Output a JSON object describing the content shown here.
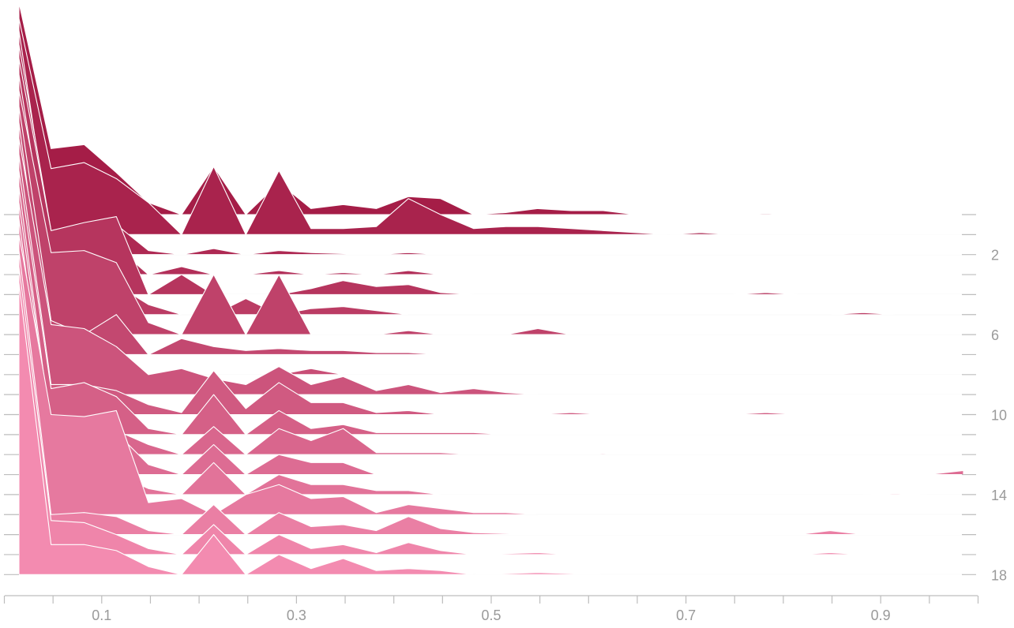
{
  "chart_data": {
    "type": "area",
    "subtype": "ridgeline",
    "title": "",
    "xlabel": "",
    "ylabel": "",
    "xlim": [
      0.015,
      0.985
    ],
    "ylim": [
      0,
      18.5
    ],
    "x": [
      0.015,
      0.048,
      0.082,
      0.115,
      0.148,
      0.182,
      0.215,
      0.248,
      0.282,
      0.315,
      0.348,
      0.382,
      0.415,
      0.448,
      0.482,
      0.515,
      0.548,
      0.582,
      0.615,
      0.648,
      0.682,
      0.715,
      0.748,
      0.782,
      0.815,
      0.848,
      0.882,
      0.915,
      0.948,
      0.985
    ],
    "x_ticks": [
      0.1,
      0.3,
      0.5,
      0.7,
      0.9
    ],
    "x_tick_labels": [
      "0.1",
      "0.3",
      "0.5",
      "0.7",
      "0.9"
    ],
    "y_ticks": [
      0,
      1,
      2,
      3,
      4,
      5,
      6,
      7,
      8,
      9,
      10,
      11,
      12,
      13,
      14,
      15,
      16,
      17,
      18
    ],
    "y_tick_labels": [
      "2",
      "6",
      "10",
      "14",
      "18"
    ],
    "y_tick_label_values": [
      2,
      6,
      10,
      14,
      18
    ],
    "y_axis_position": "right",
    "grid": false,
    "legend": "none",
    "color_start": "#a51d47",
    "color_end": "#f38bb0",
    "series": [
      {
        "baseline": 0,
        "values": [
          10.6,
          3.3,
          3.5,
          2.1,
          0.6,
          0.0,
          2.4,
          0.0,
          1.6,
          0.3,
          0.5,
          0.3,
          0.9,
          0.8,
          0.0,
          0.1,
          0.3,
          0.2,
          0.2,
          0.0,
          0.0,
          0.0,
          0.0,
          0.05,
          0.0,
          0.0,
          0.0,
          0.0,
          0.0,
          0.0
        ]
      },
      {
        "baseline": 1,
        "values": [
          10.8,
          3.3,
          3.6,
          2.8,
          1.6,
          0.0,
          3.4,
          0.0,
          3.2,
          0.3,
          0.3,
          0.4,
          1.8,
          1.0,
          0.3,
          0.4,
          0.4,
          0.3,
          0.2,
          0.1,
          0.0,
          0.1,
          0.0,
          0.0,
          0.0,
          0.0,
          0.0,
          0.0,
          0.0,
          0.0
        ]
      },
      {
        "baseline": 2,
        "values": [
          11.2,
          0.5,
          0.7,
          1.5,
          0.2,
          0.0,
          0.3,
          0.0,
          0.2,
          0.1,
          0.05,
          0.0,
          0.1,
          0.0,
          0.0,
          0.0,
          0.0,
          0.05,
          0.0,
          0.0,
          0.0,
          0.0,
          0.0,
          0.0,
          0.0,
          0.0,
          0.0,
          0.05,
          0.0,
          0.0
        ]
      },
      {
        "baseline": 3,
        "values": [
          11.5,
          2.2,
          1.6,
          1.4,
          0.0,
          0.4,
          0.0,
          0.0,
          0.2,
          0.0,
          0.1,
          0.0,
          0.2,
          0.0,
          0.0,
          0.0,
          0.0,
          0.0,
          0.0,
          0.0,
          0.0,
          0.0,
          0.0,
          0.0,
          0.0,
          0.0,
          0.0,
          0.0,
          0.0,
          0.0
        ]
      },
      {
        "baseline": 4,
        "values": [
          11.8,
          3.2,
          3.6,
          3.9,
          0.0,
          1.0,
          0.0,
          0.0,
          0.0,
          0.3,
          0.7,
          0.4,
          0.5,
          0.1,
          0.0,
          0.0,
          0.0,
          0.0,
          0.0,
          0.0,
          0.0,
          0.0,
          0.0,
          0.1,
          0.0,
          0.0,
          0.0,
          0.0,
          0.0,
          0.0
        ]
      },
      {
        "baseline": 5,
        "values": [
          12.0,
          1.8,
          2.0,
          1.5,
          0.5,
          0.0,
          0.0,
          0.8,
          0.0,
          0.3,
          0.4,
          0.2,
          0.0,
          0.0,
          0.0,
          0.0,
          0.0,
          0.0,
          0.0,
          0.0,
          0.0,
          0.0,
          0.0,
          0.0,
          0.0,
          0.0,
          0.1,
          0.0,
          0.0,
          0.0
        ]
      },
      {
        "baseline": 6,
        "values": [
          12.2,
          4.1,
          4.2,
          3.6,
          0.6,
          0.0,
          3.0,
          0.0,
          3.0,
          0.0,
          0.0,
          0.0,
          0.2,
          0.0,
          0.0,
          0.0,
          0.3,
          0.0,
          0.0,
          0.0,
          0.0,
          0.0,
          0.0,
          0.0,
          0.0,
          0.0,
          0.0,
          0.0,
          0.0,
          0.0
        ]
      },
      {
        "baseline": 7,
        "values": [
          12.4,
          1.7,
          1.0,
          2.0,
          0.0,
          0.8,
          0.4,
          0.2,
          0.3,
          0.2,
          0.2,
          0.1,
          0.1,
          0.0,
          0.0,
          0.0,
          0.0,
          0.0,
          0.0,
          0.0,
          0.0,
          0.0,
          0.0,
          0.0,
          0.0,
          0.0,
          0.0,
          0.0,
          0.0,
          0.0
        ]
      },
      {
        "baseline": 8,
        "values": [
          12.6,
          0.5,
          0.0,
          1.2,
          0.0,
          0.0,
          0.0,
          0.0,
          0.0,
          0.3,
          0.0,
          0.0,
          0.0,
          0.0,
          0.0,
          0.0,
          0.0,
          0.0,
          0.0,
          0.0,
          0.0,
          0.0,
          0.0,
          0.0,
          0.0,
          0.0,
          0.0,
          0.0,
          0.0,
          0.0
        ]
      },
      {
        "baseline": 9,
        "values": [
          12.8,
          3.5,
          3.3,
          2.4,
          1.0,
          1.3,
          0.8,
          0.5,
          1.4,
          0.5,
          0.9,
          0.2,
          0.5,
          0.1,
          0.3,
          0.1,
          0.0,
          0.0,
          0.0,
          0.0,
          0.0,
          0.0,
          0.0,
          0.0,
          0.0,
          0.0,
          0.0,
          0.0,
          0.0,
          0.0
        ]
      },
      {
        "baseline": 10,
        "values": [
          13.0,
          1.5,
          1.5,
          1.2,
          0.5,
          0.1,
          2.2,
          0.3,
          1.6,
          0.6,
          0.6,
          0.1,
          0.2,
          0.0,
          0.0,
          0.0,
          0.0,
          0.1,
          0.0,
          0.0,
          0.0,
          0.0,
          0.0,
          0.1,
          0.0,
          0.0,
          0.0,
          0.0,
          0.0,
          0.0
        ]
      },
      {
        "baseline": 11,
        "values": [
          13.2,
          2.3,
          2.6,
          1.9,
          0.3,
          0.0,
          2.0,
          0.0,
          1.2,
          0.3,
          0.5,
          0.1,
          0.1,
          0.1,
          0.1,
          0.0,
          0.0,
          0.0,
          0.0,
          0.0,
          0.0,
          0.0,
          0.0,
          0.0,
          0.0,
          0.0,
          0.0,
          0.0,
          0.0,
          0.0
        ]
      },
      {
        "baseline": 12,
        "values": [
          13.4,
          1.2,
          1.4,
          1.2,
          0.5,
          0.0,
          1.4,
          0.0,
          1.3,
          0.7,
          1.3,
          0.1,
          0.1,
          0.1,
          0.0,
          0.05,
          0.0,
          0.0,
          0.05,
          0.0,
          0.0,
          0.0,
          0.0,
          0.05,
          0.0,
          0.0,
          0.0,
          0.0,
          0.0,
          0.0
        ]
      },
      {
        "baseline": 13,
        "values": [
          13.6,
          2.1,
          2.2,
          2.1,
          0.5,
          0.0,
          1.5,
          0.0,
          1.0,
          0.6,
          0.6,
          0.0,
          0.0,
          0.0,
          0.0,
          0.0,
          0.0,
          0.0,
          0.0,
          0.0,
          0.0,
          0.0,
          0.0,
          0.0,
          0.0,
          0.0,
          0.0,
          0.0,
          0.0,
          0.2
        ]
      },
      {
        "baseline": 14,
        "values": [
          13.8,
          1.5,
          1.5,
          1.0,
          0.3,
          0.0,
          1.6,
          0.0,
          1.0,
          0.5,
          0.5,
          0.2,
          0.2,
          0.0,
          0.0,
          0.0,
          0.0,
          0.0,
          0.0,
          0.0,
          0.0,
          0.0,
          0.0,
          0.0,
          0.0,
          0.0,
          0.0,
          0.05,
          0.0,
          0.0
        ]
      },
      {
        "baseline": 15,
        "values": [
          14.0,
          5.0,
          4.9,
          5.2,
          0.6,
          0.8,
          0.0,
          1.0,
          1.5,
          0.8,
          0.9,
          0.1,
          0.5,
          0.3,
          0.1,
          0.1,
          0.0,
          0.0,
          0.0,
          0.0,
          0.0,
          0.0,
          0.0,
          0.0,
          0.0,
          0.0,
          0.0,
          0.0,
          0.0,
          0.0
        ]
      },
      {
        "baseline": 16,
        "values": [
          14.2,
          1.0,
          1.1,
          0.9,
          0.2,
          0.0,
          1.5,
          0.0,
          1.1,
          0.4,
          0.5,
          0.2,
          0.9,
          0.3,
          0.1,
          0.05,
          0.0,
          0.0,
          0.0,
          0.0,
          0.0,
          0.0,
          0.0,
          0.0,
          0.0,
          0.2,
          0.0,
          0.0,
          0.0,
          0.0
        ]
      },
      {
        "baseline": 17,
        "values": [
          14.4,
          1.7,
          1.6,
          1.0,
          0.3,
          0.0,
          1.5,
          0.0,
          1.0,
          0.3,
          0.5,
          0.1,
          0.6,
          0.2,
          0.0,
          0.05,
          0.1,
          0.0,
          0.0,
          0.0,
          0.0,
          0.0,
          0.0,
          0.0,
          0.0,
          0.1,
          0.0,
          0.0,
          0.0,
          0.0
        ]
      },
      {
        "baseline": 18,
        "values": [
          14.6,
          1.5,
          1.5,
          1.2,
          0.4,
          0.0,
          2.0,
          0.0,
          1.0,
          0.3,
          0.8,
          0.2,
          0.3,
          0.2,
          0.0,
          0.05,
          0.1,
          0.05,
          0.0,
          0.0,
          0.0,
          0.0,
          0.0,
          0.0,
          0.0,
          0.0,
          0.0,
          0.0,
          0.0,
          0.0
        ]
      }
    ]
  }
}
